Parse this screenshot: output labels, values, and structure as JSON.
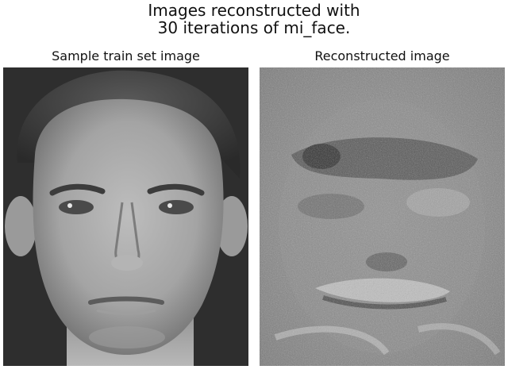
{
  "figure": {
    "title_line1": "Images reconstructed with",
    "title_line2": "30 iterations of mi_face."
  },
  "panels": [
    {
      "title": "Sample train set image",
      "image": "grayscale face photo (sample from training set)"
    },
    {
      "title": "Reconstructed image",
      "image": "noisy grayscale reconstructed face"
    }
  ]
}
